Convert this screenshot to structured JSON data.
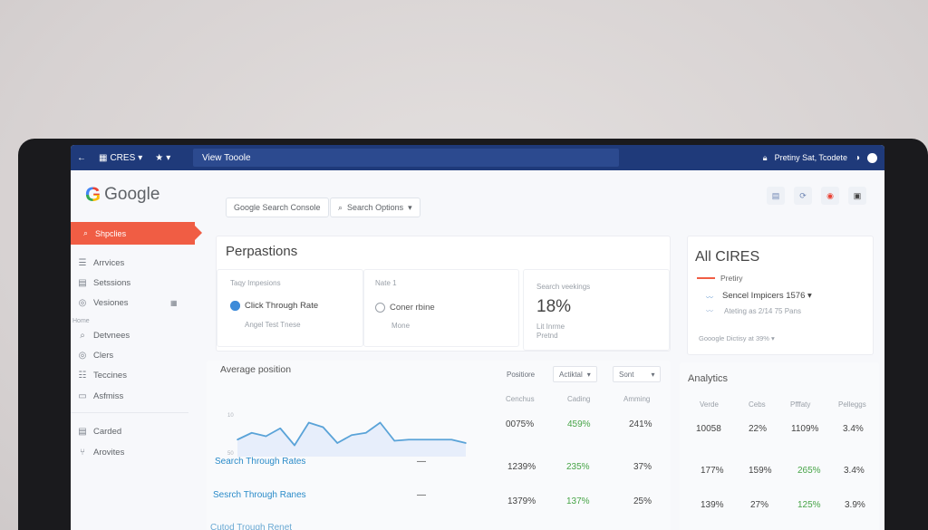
{
  "browser": {
    "back_icon": "back-arrow-icon",
    "profile_label": "CRES",
    "star_label": "★",
    "tab_text": "View Tooole",
    "right_text": "Pretiny Sat, Tcodete"
  },
  "header": {
    "logo_text": "Google",
    "console_pill": "Google Search Console",
    "options_pill": "Search Options"
  },
  "sidebar": {
    "active": "Shpclies",
    "items": [
      {
        "label": "Arrvices",
        "icon": "list-icon"
      },
      {
        "label": "Setssions",
        "icon": "doc-icon"
      },
      {
        "label": "Vesiones",
        "icon": "circle-icon"
      }
    ],
    "section_label": "Home",
    "items2": [
      {
        "label": "Detvnees",
        "icon": "search-icon"
      },
      {
        "label": "Clers",
        "icon": "circle-icon"
      },
      {
        "label": "Teccines",
        "icon": "list-icon"
      },
      {
        "label": "Asfmiss",
        "icon": "chat-icon"
      }
    ],
    "items3": [
      {
        "label": "Carded",
        "icon": "doc-icon"
      },
      {
        "label": "Arovites",
        "icon": "tree-icon"
      }
    ]
  },
  "perpastions": {
    "title": "Perpastions",
    "box1": {
      "label": "Taqy Impesions",
      "option": "Click Through Rate",
      "sub": "Angel Test Tnese"
    },
    "box2": {
      "label": "Nate 1",
      "option": "Coner rbine",
      "sub": "Mone"
    },
    "box3": {
      "label": "Search veekings",
      "value": "18%",
      "sub1": "Lit Inrme",
      "sub2": "Pretnd"
    }
  },
  "all_cires": {
    "title": "All CIRES",
    "legend": "Pretiry",
    "line1": "Sencel Impicers 1576",
    "line2": "Ateting as 2/14 75 Pans",
    "dropdown": "Gooogle Dictisy at 39%"
  },
  "table": {
    "title": "Average position",
    "dd1": "Positiore",
    "dd2": "Actiktal",
    "dd3": "Sont",
    "col_headers": [
      "Cenchus",
      "Cading",
      "Amming"
    ],
    "y_ticks": [
      "10",
      "50"
    ],
    "chart_row": {
      "v1": "0075%",
      "v2": "459%",
      "v3": "241%"
    },
    "rows": [
      {
        "name": "Search Through Rates",
        "dash": "—",
        "v1": "1239%",
        "v2": "235%",
        "v3": "37%"
      },
      {
        "name": "Sesrch Through Ranes",
        "dash": "—",
        "v1": "1379%",
        "v2": "137%",
        "v3": "25%"
      },
      {
        "name": "Cutod Trough Renet",
        "dash": "",
        "v1": "",
        "v2": "",
        "v3": ""
      }
    ]
  },
  "analytics": {
    "title": "Analytics",
    "col_headers": [
      "Verde",
      "Cebs",
      "Pfffaty",
      "Pelleggs"
    ],
    "rows": [
      [
        "10058",
        "22%",
        "1109%",
        "3.4%"
      ],
      [
        "177%",
        "159%",
        "265%",
        "3.4%"
      ],
      [
        "139%",
        "27%",
        "125%",
        "3.9%"
      ]
    ]
  },
  "chart_data": {
    "type": "line",
    "x": [
      1,
      2,
      3,
      4,
      5,
      6,
      7,
      8,
      9,
      10,
      11,
      12,
      13,
      14,
      15,
      16,
      17
    ],
    "series": [
      {
        "values": [
          25,
          31,
          28,
          35,
          20,
          40,
          36,
          22,
          29,
          31,
          40,
          24,
          25,
          25,
          25,
          25,
          22
        ]
      }
    ],
    "ylim": [
      10,
      50
    ],
    "grid": false,
    "colors": {
      "line": "#5aa3d8",
      "fill": "#e7eefb"
    }
  }
}
